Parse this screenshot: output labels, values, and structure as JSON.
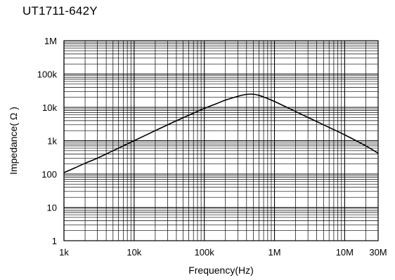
{
  "chart_data": {
    "type": "line",
    "title": "UT1711-642Y",
    "xlabel": "Frequency(Hz)",
    "ylabel": "Impedance( Ω )",
    "x_scale": "log",
    "y_scale": "log",
    "xlim": [
      1000,
      30000000
    ],
    "ylim": [
      1,
      1000000
    ],
    "grid": true,
    "x_ticks": [
      {
        "value": 1000,
        "label": "1k"
      },
      {
        "value": 10000,
        "label": "10k"
      },
      {
        "value": 100000,
        "label": "100k"
      },
      {
        "value": 1000000,
        "label": "1M"
      },
      {
        "value": 10000000,
        "label": "10M"
      },
      {
        "value": 30000000,
        "label": "30M"
      }
    ],
    "y_ticks": [
      {
        "value": 1,
        "label": "1"
      },
      {
        "value": 10,
        "label": "10"
      },
      {
        "value": 100,
        "label": "100"
      },
      {
        "value": 1000,
        "label": "1k"
      },
      {
        "value": 10000,
        "label": "10k"
      },
      {
        "value": 100000,
        "label": "100k"
      },
      {
        "value": 1000000,
        "label": "1M"
      }
    ],
    "series": [
      {
        "color": "#000000",
        "x": [
          1000,
          1400,
          2000,
          3000,
          5000,
          7000,
          10000,
          20000,
          30000,
          50000,
          70000,
          100000,
          150000,
          200000,
          300000,
          400000,
          500000,
          600000,
          700000,
          1000000,
          2000000,
          5000000,
          10000000,
          20000000,
          30000000
        ],
        "y": [
          110,
          150,
          210,
          300,
          500,
          700,
          1000,
          2000,
          3000,
          4900,
          6700,
          9300,
          13000,
          16500,
          21500,
          24500,
          24800,
          23000,
          20500,
          15000,
          7500,
          3000,
          1500,
          700,
          420
        ]
      }
    ]
  }
}
